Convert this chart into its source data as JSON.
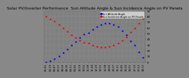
{
  "title": "Solar PV/Inverter Performance  Sun Altitude Angle & Sun Incidence Angle on PV Panels",
  "blue_label": "Sun Altitude Angle",
  "red_label": "Sun Incidence Angle on PV Panels",
  "background_color": "#888888",
  "plot_bg_color": "#808080",
  "grid_color": "#999999",
  "blue_color": "#0000ee",
  "red_color": "#ee0000",
  "x_times": [
    "05:45",
    "06:19",
    "06:47",
    "07:27",
    "08:02",
    "08:36",
    "09:11",
    "09:45",
    "10:19",
    "10:54",
    "11:09",
    "11:44",
    "12:19",
    "12:53",
    "13:28",
    "14:02",
    "14:37",
    "15:11",
    "15:46",
    "16:20",
    "16:55",
    "17:19",
    "17:53",
    "18:12"
  ],
  "blue_values": [
    0,
    2,
    5,
    10,
    16,
    22,
    29,
    36,
    43,
    49,
    51,
    57,
    62,
    66,
    68,
    68,
    66,
    62,
    55,
    47,
    37,
    29,
    17,
    8
  ],
  "red_values": [
    80,
    75,
    71,
    65,
    60,
    54,
    48,
    43,
    38,
    34,
    33,
    30,
    27,
    26,
    26,
    27,
    29,
    33,
    38,
    44,
    52,
    59,
    68,
    76
  ],
  "ylim": [
    0,
    90
  ],
  "yticks": [
    0,
    10,
    20,
    30,
    40,
    50,
    60,
    70,
    80,
    90
  ],
  "title_fontsize": 4.2,
  "tick_fontsize": 2.8,
  "legend_fontsize": 2.5,
  "dot_size": 3.0
}
